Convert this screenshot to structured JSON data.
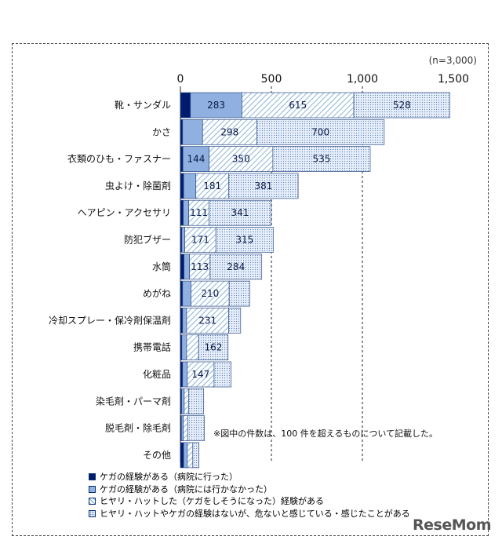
{
  "chart_data": {
    "type": "bar",
    "orientation": "horizontal",
    "stacked": true,
    "sample_note": "(n=3,000)",
    "xlim": [
      0,
      1500
    ],
    "ticks": [
      {
        "value": 0,
        "label": "0"
      },
      {
        "value": 500,
        "label": "500"
      },
      {
        "value": 1000,
        "label": "1,000"
      },
      {
        "value": 1500,
        "label": "1,500"
      }
    ],
    "grid": "vertical dashed at 500 and 1000",
    "categories": [
      "靴・サンダル",
      "かさ",
      "衣類のひも・ファスナー",
      "虫よけ・除菌剤",
      "ヘアピン・アクセサリ",
      "防犯ブザー",
      "水筒",
      "めがね",
      "冷却スプレー・保冷剤保温剤",
      "携帯電話",
      "化粧品",
      "染毛剤・パーマ剤",
      "脱毛剤・除毛剤",
      "その他"
    ],
    "series": [
      {
        "name": "ケガの経験がある（病院に行った）",
        "color": "#001b6e",
        "values": [
          55,
          12,
          14,
          18,
          16,
          8,
          20,
          12,
          12,
          8,
          12,
          7,
          6,
          18
        ]
      },
      {
        "name": "ケガの経験がある（病院には行かなかった）",
        "color": "#8fb0e0",
        "values": [
          283,
          110,
          144,
          67,
          30,
          16,
          30,
          46,
          22,
          26,
          26,
          14,
          10,
          20
        ]
      },
      {
        "name": "ヒヤリ・ハットした（ケガをしそうになった）経験がある",
        "color": "#8ab4dc",
        "values": [
          615,
          298,
          350,
          181,
          111,
          171,
          113,
          210,
          231,
          66,
          147,
          24,
          24,
          30
        ]
      },
      {
        "name": "ヒヤリ・ハットやケガの経験はないが、危ないと感じている・感じたことがある",
        "color": "#e6eefa",
        "values": [
          528,
          700,
          535,
          381,
          341,
          315,
          284,
          113,
          66,
          162,
          94,
          83,
          92,
          34
        ]
      }
    ],
    "data_labels": [
      [
        "",
        "283",
        "615",
        "528"
      ],
      [
        "",
        "",
        "298",
        "700"
      ],
      [
        "",
        "144",
        "350",
        "535"
      ],
      [
        "",
        "",
        "181",
        "381"
      ],
      [
        "",
        "",
        "111",
        "341"
      ],
      [
        "",
        "",
        "171",
        "315"
      ],
      [
        "",
        "",
        "113",
        "284"
      ],
      [
        "",
        "",
        "210",
        ""
      ],
      [
        "",
        "",
        "231",
        ""
      ],
      [
        "",
        "",
        "",
        "162"
      ],
      [
        "",
        "",
        "147",
        ""
      ],
      [
        "",
        "",
        "",
        ""
      ],
      [
        "",
        "",
        "",
        ""
      ],
      [
        "",
        "",
        "",
        ""
      ]
    ],
    "note": "※図中の件数は、100 件を超えるものについて記載した。",
    "legend_placement": "bottom-left"
  },
  "watermark": "ReseMom"
}
